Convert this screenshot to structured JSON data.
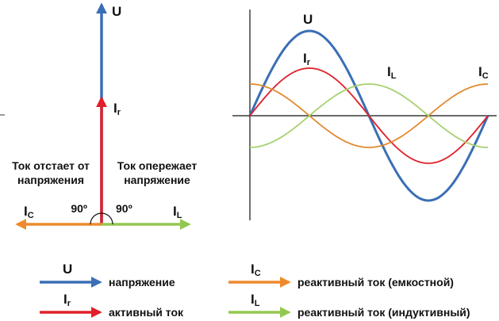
{
  "phasor": {
    "voltage": "U",
    "active_current": {
      "main": "I",
      "sub": "r"
    },
    "lag_note": [
      "Ток отстает от",
      "напряжения"
    ],
    "lead_note": [
      "Ток опережает",
      "напряжение"
    ],
    "capacitive_current": {
      "main": "I",
      "sub": "C"
    },
    "inductive_current": {
      "main": "I",
      "sub": "L"
    },
    "angle_left": "90º",
    "angle_right": "90º"
  },
  "waves": {
    "voltage": "U",
    "active_current": {
      "main": "I",
      "sub": "r"
    },
    "inductive_current": {
      "main": "I",
      "sub": "L"
    },
    "capacitive_current": {
      "main": "I",
      "sub": "C"
    }
  },
  "legend": [
    {
      "symbol": {
        "main": "U"
      },
      "text": "напряжение"
    },
    {
      "symbol": {
        "main": "I",
        "sub": "r"
      },
      "text": "активный ток"
    },
    {
      "symbol": {
        "main": "I",
        "sub": "C"
      },
      "text": "реактивный ток (емкостной)"
    },
    {
      "symbol": {
        "main": "I",
        "sub": "L"
      },
      "text": "реактивный ток (индуктивный)"
    }
  ]
}
